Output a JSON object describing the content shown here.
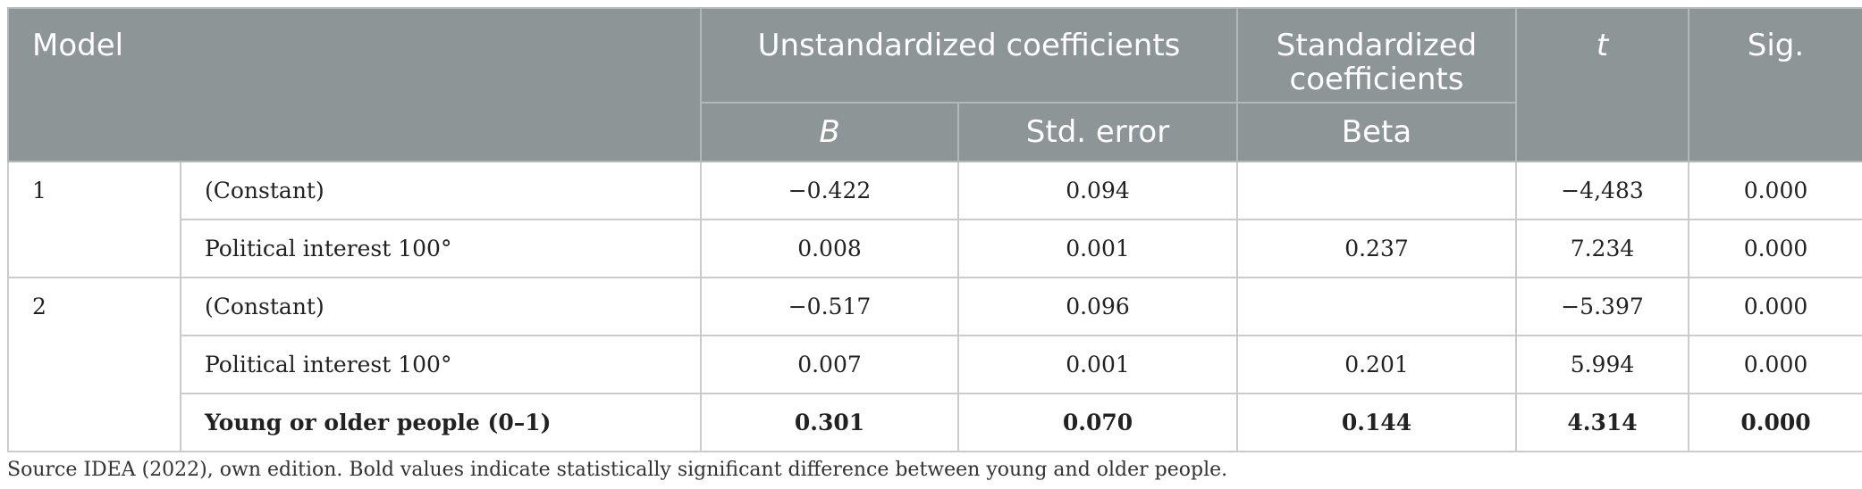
{
  "header": {
    "model": "Model",
    "unstandardized": "Unstandardized coefficients",
    "standardized_line1": "Standardized",
    "standardized_line2": "coefficients",
    "t": "t",
    "sig": "Sig.",
    "b": "B",
    "std_error": "Std. error",
    "beta": "Beta"
  },
  "rows": [
    {
      "model": "1",
      "variable": "(Constant)",
      "b": "−0.422",
      "std_error": "0.094",
      "beta": "",
      "t": "−4,483",
      "sig": "0.000"
    },
    {
      "model": "",
      "variable": "Political interest 100°",
      "b": "0.008",
      "std_error": "0.001",
      "beta": "0.237",
      "t": "7.234",
      "sig": "0.000"
    },
    {
      "model": "2",
      "variable": "(Constant)",
      "b": "−0.517",
      "std_error": "0.096",
      "beta": "",
      "t": "−5.397",
      "sig": "0.000"
    },
    {
      "model": "",
      "variable": "Political interest 100°",
      "b": "0.007",
      "std_error": "0.001",
      "beta": "0.201",
      "t": "5.994",
      "sig": "0.000"
    },
    {
      "model": "",
      "variable": "Young or older people (0–1)",
      "b": "0.301",
      "std_error": "0.070",
      "beta": "0.144",
      "t": "4.314",
      "sig": "0.000"
    }
  ],
  "note": "Source IDEA (2022), own edition. Bold values indicate statistically significant difference between young and older people."
}
